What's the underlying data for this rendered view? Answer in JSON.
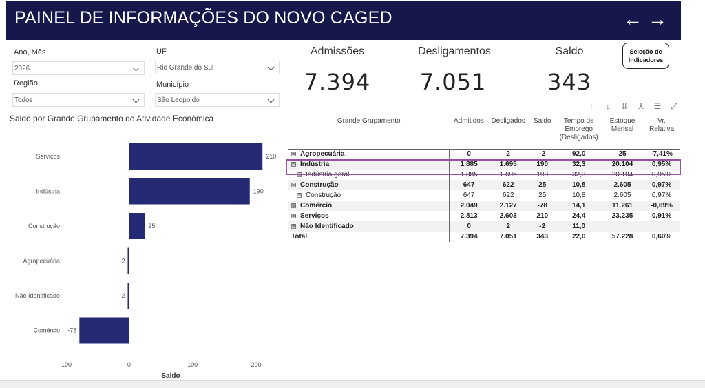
{
  "header": {
    "title": "PAINEL DE INFORMAÇÕES DO NOVO CAGED",
    "back_icon": "arrow-left-icon",
    "forward_icon": "arrow-right-icon",
    "back_glyph": "←",
    "forward_glyph": "→"
  },
  "filters": {
    "ano_mes": {
      "label": "Ano, Mês",
      "value": "2026"
    },
    "uf": {
      "label": "UF",
      "value": "Rio Grande do Sul"
    },
    "regiao": {
      "label": "Região",
      "value": "Todos"
    },
    "municipio": {
      "label": "Município",
      "value": "São Leopoldo"
    }
  },
  "kpis": {
    "admissoes": {
      "label": "Admissões",
      "value": "7.394"
    },
    "desligamentos": {
      "label": "Desligamentos",
      "value": "7.051"
    },
    "saldo": {
      "label": "Saldo",
      "value": "343"
    }
  },
  "selection_button": {
    "line1": "Seleção de",
    "line2": "Indicadores"
  },
  "toolbar": {
    "icons": [
      "arrow-up-icon",
      "arrow-down-icon",
      "double-arrow-down-icon",
      "expand-hierarchy-icon",
      "filter-icon",
      "focus-mode-icon"
    ],
    "glyphs": [
      "↑",
      "↓",
      "⇊",
      "⅄",
      "☰",
      "⤢"
    ]
  },
  "chart_data": {
    "type": "bar",
    "orientation": "horizontal",
    "title": "Saldo por Grande Grupamento de Atividade Econômica",
    "categories": [
      "Serviços",
      "Indústria",
      "Construção",
      "Agropecuária",
      "Não Identificado",
      "Comércio"
    ],
    "values": [
      210,
      190,
      25,
      -2,
      -2,
      -78
    ],
    "value_labels": [
      "210",
      "190",
      "25",
      "-2",
      "-2",
      "-78"
    ],
    "xlabel": "Saldo",
    "xlim": [
      -100,
      220
    ],
    "xticks": [
      -100,
      0,
      100,
      200
    ],
    "xtick_labels": [
      "-100",
      "0",
      "100",
      "200"
    ],
    "bar_color": "#252a74",
    "grid": false
  },
  "table": {
    "headers": [
      "Grande Grupamento",
      "Admitidos",
      "Desligados",
      "Saldo",
      "Tempo de Emprego (Desligados)",
      "Estoque Mensal",
      "Vr. Relativa"
    ],
    "rows": [
      {
        "name": "Agropecuária",
        "cells": [
          "0",
          "2",
          "-2",
          "92,0",
          "25",
          "-7,41%"
        ],
        "bold": true,
        "expander": "⊞",
        "level": 0
      },
      {
        "name": "Indústria",
        "cells": [
          "1.885",
          "1.695",
          "190",
          "32,3",
          "20.104",
          "0,95%"
        ],
        "bold": true,
        "expander": "⊟",
        "level": 0
      },
      {
        "name": "Indústria geral",
        "cells": [
          "1.885",
          "1.695",
          "190",
          "32,3",
          "20.104",
          "0,95%"
        ],
        "bold": false,
        "expander": "⊞",
        "level": 1
      },
      {
        "name": "Construção",
        "cells": [
          "647",
          "622",
          "25",
          "10,8",
          "2.605",
          "0,97%"
        ],
        "bold": true,
        "expander": "⊟",
        "level": 0
      },
      {
        "name": "Construção",
        "cells": [
          "647",
          "622",
          "25",
          "10,8",
          "2.605",
          "0,97%"
        ],
        "bold": false,
        "expander": "⊞",
        "level": 1
      },
      {
        "name": "Comércio",
        "cells": [
          "2.049",
          "2.127",
          "-78",
          "14,1",
          "11.261",
          "-0,69%"
        ],
        "bold": true,
        "expander": "⊞",
        "level": 0
      },
      {
        "name": "Serviços",
        "cells": [
          "2.813",
          "2.603",
          "210",
          "24,4",
          "23.235",
          "0,91%"
        ],
        "bold": true,
        "expander": "⊞",
        "level": 0
      },
      {
        "name": "Não Identificado",
        "cells": [
          "0",
          "2",
          "-2",
          "11,0",
          "",
          ""
        ],
        "bold": true,
        "expander": "⊞",
        "level": 0
      },
      {
        "name": "Total",
        "cells": [
          "7.394",
          "7.051",
          "343",
          "22,0",
          "57.228",
          "0,60%"
        ],
        "bold": true,
        "expander": "",
        "level": 0
      }
    ],
    "highlight_color": "#9b4ea6"
  }
}
